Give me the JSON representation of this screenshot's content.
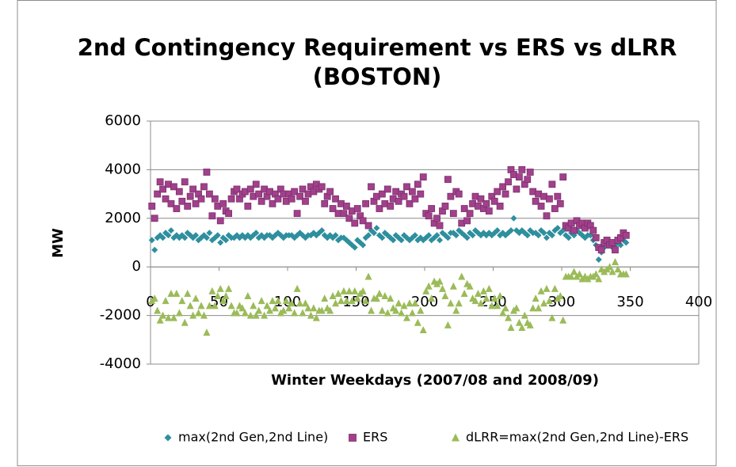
{
  "chart_data": {
    "type": "scatter",
    "title": [
      "2nd Contingency Requirement vs ERS vs dLRR",
      "(BOSTON)"
    ],
    "x_label": "Winter Weekdays (2007/08 and 2008/09)",
    "y_label": "MW",
    "xlim": [
      0,
      400
    ],
    "xticks": [
      0,
      50,
      100,
      150,
      200,
      250,
      300,
      350,
      400
    ],
    "ylim": [
      -4000,
      6000
    ],
    "yticks": [
      -4000,
      -2000,
      0,
      2000,
      4000,
      6000
    ],
    "grid": true,
    "legend": "bottom",
    "x": [
      1,
      3,
      5,
      7,
      9,
      11,
      13,
      15,
      17,
      19,
      21,
      23,
      25,
      27,
      29,
      31,
      33,
      35,
      37,
      39,
      41,
      43,
      45,
      47,
      49,
      51,
      53,
      55,
      57,
      59,
      61,
      63,
      65,
      67,
      69,
      71,
      73,
      75,
      77,
      79,
      81,
      83,
      85,
      87,
      89,
      91,
      93,
      95,
      97,
      99,
      101,
      103,
      105,
      107,
      109,
      111,
      113,
      115,
      117,
      119,
      121,
      123,
      125,
      127,
      129,
      131,
      133,
      135,
      137,
      139,
      141,
      143,
      145,
      147,
      149,
      151,
      153,
      155,
      157,
      159,
      161,
      163,
      165,
      167,
      169,
      171,
      173,
      175,
      177,
      179,
      181,
      183,
      185,
      187,
      189,
      191,
      193,
      195,
      197,
      199,
      201,
      203,
      205,
      207,
      209,
      211,
      213,
      215,
      217,
      219,
      221,
      223,
      225,
      227,
      229,
      231,
      233,
      235,
      237,
      239,
      241,
      243,
      245,
      247,
      249,
      251,
      253,
      255,
      257,
      259,
      261,
      263,
      265,
      267,
      269,
      271,
      273,
      275,
      277,
      279,
      281,
      283,
      285,
      287,
      289,
      291,
      293,
      295,
      297,
      299,
      301,
      303,
      305,
      307,
      309,
      311,
      313,
      315,
      317,
      319,
      321,
      323,
      325,
      327,
      329,
      331,
      333,
      335,
      337,
      339,
      341,
      343,
      345,
      347
    ],
    "series": [
      {
        "name": "max(2nd Gen,2nd Line)",
        "color": "#2e8f9e",
        "marker": "diamond",
        "values": [
          1100,
          700,
          1200,
          1300,
          1200,
          1400,
          1300,
          1500,
          1200,
          1300,
          1200,
          1300,
          1200,
          1400,
          1300,
          1200,
          1300,
          1100,
          1200,
          1300,
          1200,
          1400,
          1100,
          1200,
          1300,
          1000,
          1200,
          1100,
          1300,
          1200,
          1200,
          1300,
          1200,
          1300,
          1200,
          1300,
          1200,
          1300,
          1400,
          1200,
          1300,
          1200,
          1300,
          1300,
          1200,
          1300,
          1400,
          1300,
          1200,
          1300,
          1300,
          1300,
          1200,
          1300,
          1400,
          1300,
          1200,
          1300,
          1300,
          1400,
          1300,
          1400,
          1500,
          1300,
          1200,
          1300,
          1200,
          1300,
          1100,
          1200,
          1200,
          1100,
          1000,
          900,
          800,
          1100,
          1000,
          900,
          1200,
          1300,
          1500,
          1400,
          1600,
          1300,
          1200,
          1400,
          1300,
          1200,
          1100,
          1300,
          1200,
          1100,
          1300,
          1200,
          1100,
          1200,
          1300,
          1100,
          1200,
          1100,
          1200,
          1300,
          1100,
          1200,
          1300,
          1100,
          1400,
          1300,
          1200,
          1400,
          1400,
          1300,
          1500,
          1400,
          1300,
          1200,
          1400,
          1300,
          1500,
          1400,
          1300,
          1400,
          1300,
          1400,
          1300,
          1400,
          1500,
          1300,
          1400,
          1300,
          1400,
          1500,
          2000,
          1500,
          1400,
          1500,
          1400,
          1300,
          1500,
          1400,
          1400,
          1300,
          1500,
          1400,
          1200,
          1400,
          1300,
          1500,
          1600,
          1400,
          1500,
          1300,
          1200,
          1400,
          1300,
          1500,
          1400,
          1300,
          1200,
          1300,
          1300,
          1100,
          900,
          300,
          600,
          800,
          1000,
          900,
          800,
          900,
          1000,
          900,
          1100,
          1000
        ]
      },
      {
        "name": "ERS",
        "color": "#a2408c",
        "marker": "square",
        "values": [
          2500,
          2000,
          3000,
          3500,
          3200,
          2800,
          3400,
          2600,
          3300,
          2400,
          3100,
          2700,
          3500,
          2500,
          2900,
          3200,
          2600,
          3000,
          2800,
          3300,
          3900,
          3000,
          2100,
          2800,
          2500,
          1900,
          2600,
          2300,
          2200,
          2800,
          3100,
          3200,
          2800,
          3000,
          3100,
          2500,
          3200,
          2900,
          3400,
          3000,
          2700,
          3200,
          2900,
          3100,
          2600,
          3000,
          2800,
          3200,
          3000,
          2700,
          3000,
          2800,
          3100,
          2200,
          2900,
          3200,
          2700,
          3000,
          3300,
          3100,
          3400,
          3200,
          3300,
          2600,
          2900,
          3100,
          2400,
          2800,
          2200,
          2600,
          2200,
          2500,
          2000,
          2300,
          1800,
          2400,
          2100,
          1900,
          2600,
          1700,
          3300,
          2700,
          2900,
          2400,
          3000,
          2600,
          3200,
          2500,
          2800,
          3100,
          2700,
          3000,
          2900,
          3300,
          2600,
          3100,
          2800,
          3400,
          3000,
          3700,
          2200,
          2100,
          2400,
          1800,
          2000,
          1700,
          2300,
          2500,
          3600,
          2900,
          2200,
          3100,
          3000,
          1800,
          2400,
          1900,
          2200,
          2600,
          2900,
          2500,
          2800,
          2400,
          2600,
          2300,
          2900,
          2700,
          3100,
          2500,
          3300,
          3000,
          3500,
          4000,
          3800,
          3200,
          3700,
          4000,
          3400,
          3600,
          3900,
          3100,
          2700,
          3000,
          2500,
          2900,
          2100,
          2800,
          3400,
          2400,
          2900,
          2600,
          3700,
          1700,
          1600,
          1800,
          1500,
          1900,
          1700,
          1800,
          1600,
          1800,
          1700,
          1500,
          1200,
          800,
          700,
          1000,
          1100,
          900,
          1000,
          700,
          1100,
          1200,
          1400,
          1300
        ]
      },
      {
        "name": "dLRR=max(2nd Gen,2nd Line)-ERS",
        "color": "#9bbb59",
        "marker": "triangle",
        "values": [
          -1400,
          -1300,
          -1800,
          -2200,
          -2000,
          -1400,
          -2100,
          -1100,
          -2100,
          -1100,
          -1900,
          -1400,
          -2300,
          -1100,
          -1600,
          -2000,
          -1300,
          -1900,
          -1600,
          -2000,
          -2700,
          -1600,
          -1000,
          -1600,
          -1200,
          -900,
          -1400,
          -1200,
          -900,
          -1600,
          -1900,
          -1900,
          -1600,
          -1700,
          -1900,
          -1200,
          -2000,
          -1600,
          -2000,
          -1800,
          -1400,
          -2000,
          -1600,
          -1800,
          -1400,
          -1700,
          -1400,
          -1900,
          -1800,
          -1400,
          -1700,
          -1500,
          -1900,
          -900,
          -1500,
          -1900,
          -1500,
          -1700,
          -2000,
          -1700,
          -2100,
          -1800,
          -1800,
          -1300,
          -1700,
          -1800,
          -1200,
          -1500,
          -1100,
          -1400,
          -1000,
          -1400,
          -1000,
          -1400,
          -1000,
          -1300,
          -1100,
          -1000,
          -1400,
          -400,
          -1800,
          -1300,
          -1300,
          -1100,
          -1800,
          -1200,
          -1900,
          -1300,
          -1700,
          -1800,
          -1500,
          -1900,
          -1600,
          -2100,
          -1500,
          -1900,
          -1500,
          -2300,
          -1800,
          -2600,
          -1000,
          -800,
          -1300,
          -600,
          -700,
          -600,
          -900,
          -1200,
          -2400,
          -1500,
          -800,
          -1800,
          -1500,
          -400,
          -1100,
          -700,
          -800,
          -1300,
          -1400,
          -1100,
          -1500,
          -1000,
          -1300,
          -900,
          -1600,
          -1300,
          -1600,
          -1200,
          -1900,
          -1700,
          -2100,
          -2500,
          -1800,
          -1700,
          -2300,
          -2500,
          -2000,
          -2300,
          -2400,
          -1700,
          -1300,
          -1700,
          -1000,
          -1500,
          -900,
          -1400,
          -2100,
          -900,
          -1300,
          -1200,
          -2200,
          -400,
          -400,
          -400,
          -200,
          -400,
          -300,
          -500,
          -400,
          -500,
          -400,
          -400,
          -300,
          -500,
          -100,
          -200,
          -100,
          0,
          -200,
          200,
          -100,
          -300,
          -300,
          -300
        ]
      }
    ]
  }
}
